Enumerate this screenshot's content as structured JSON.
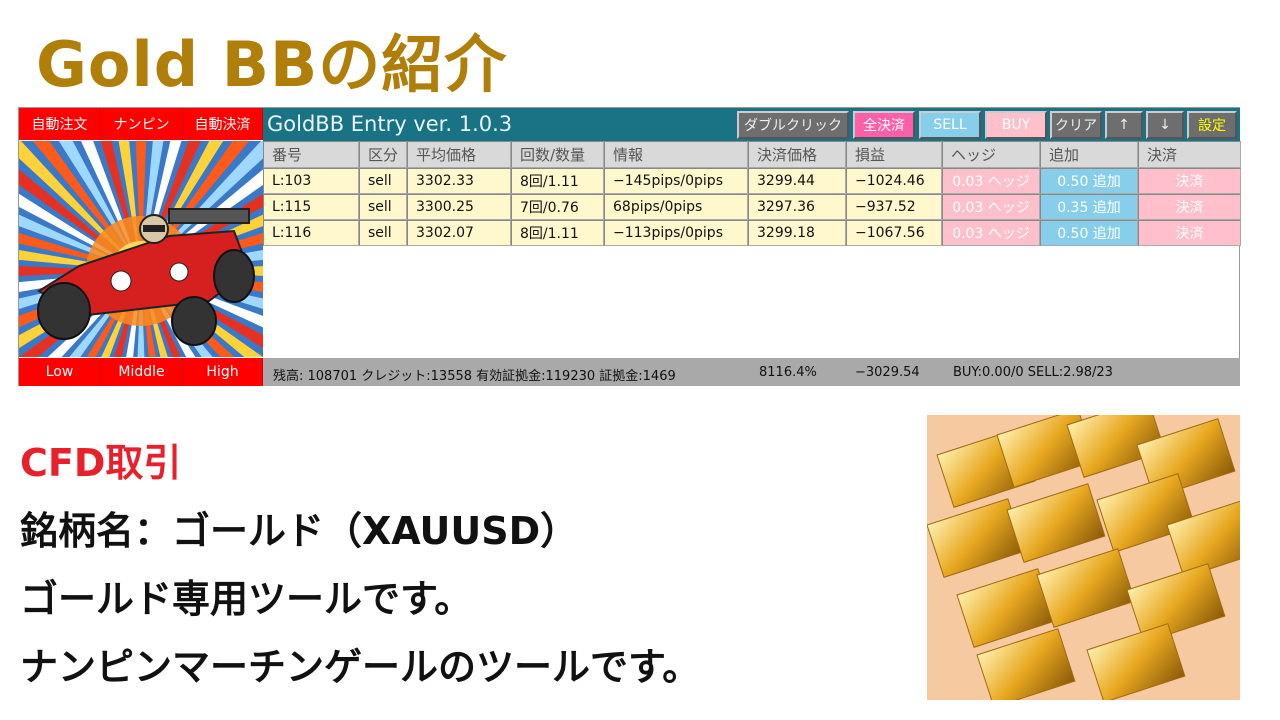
{
  "page_title": "Gold BBの紹介",
  "panel": {
    "left_buttons_top": [
      "自動注文",
      "ナンピン",
      "自動決済"
    ],
    "left_buttons_bottom": [
      "Low",
      "Middle",
      "High"
    ],
    "app_title": "GoldBB Entry ver. 1.0.3",
    "toolbar": {
      "double_click": "ダブルクリック",
      "close_all": "全決済",
      "sell": "SELL",
      "buy": "BUY",
      "clear": "クリア",
      "up": "↑",
      "down": "↓",
      "settings": "設定"
    },
    "columns": [
      "番号",
      "区分",
      "平均価格",
      "回数/数量",
      "情報",
      "決済価格",
      "損益",
      "ヘッジ",
      "追加",
      "決済"
    ],
    "rows": [
      {
        "id": "L:103",
        "side": "sell",
        "avg": "3302.33",
        "count": "8回/1.11",
        "info": "−145pips/0pips",
        "close_price": "3299.44",
        "pl": "−1024.46",
        "hedge": "0.03 ヘッジ",
        "add": "0.50 追加",
        "close": "決済"
      },
      {
        "id": "L:115",
        "side": "sell",
        "avg": "3300.25",
        "count": "7回/0.76",
        "info": "68pips/0pips",
        "close_price": "3297.36",
        "pl": "−937.52",
        "hedge": "0.03 ヘッジ",
        "add": "0.35 追加",
        "close": "決済"
      },
      {
        "id": "L:116",
        "side": "sell",
        "avg": "3302.07",
        "count": "8回/1.11",
        "info": "−113pips/0pips",
        "close_price": "3299.18",
        "pl": "−1067.56",
        "hedge": "0.03 ヘッジ",
        "add": "0.50 追加",
        "close": "決済"
      }
    ],
    "status": {
      "account": "残高: 108701 クレジット:13558 有効証拠金:119230 証拠金:1469",
      "margin_level": "8116.4%",
      "total_pl": "−3029.54",
      "positions": "BUY:0.00/0 SELL:2.98/23"
    }
  },
  "description": {
    "line1": "CFD取引",
    "line2": "銘柄名：ゴールド（XAUUSD）",
    "line3": "ゴールド専用ツールです。",
    "line4": "ナンピンマーチンゲールのツールです。"
  },
  "colors": {
    "title": "#b07f0a",
    "accent_red": "#e8202a",
    "header": "#1a7385"
  }
}
